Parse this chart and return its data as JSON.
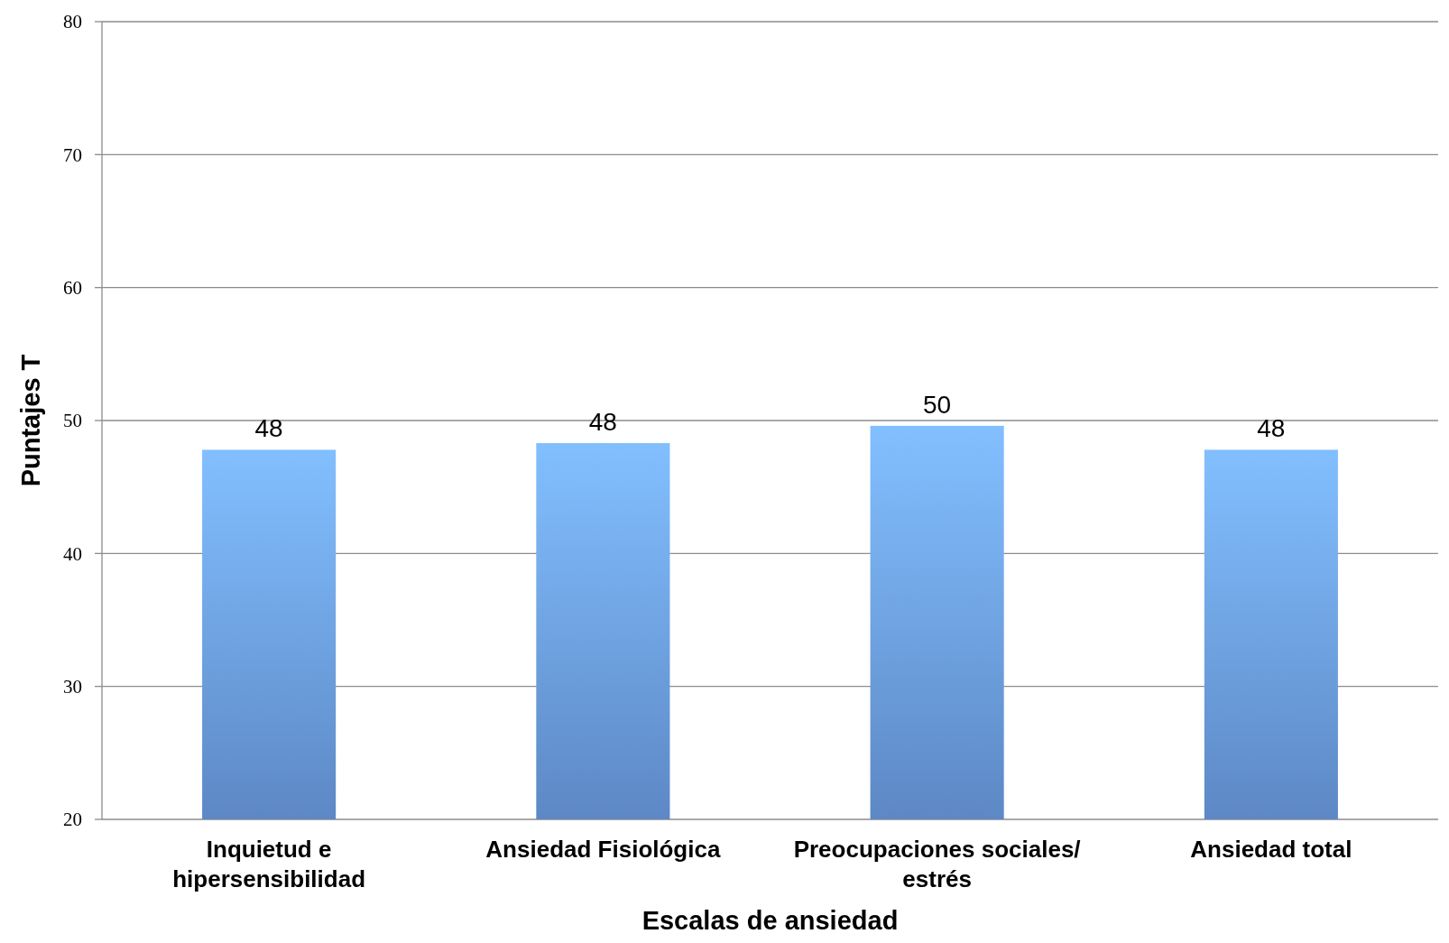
{
  "chart_data": {
    "type": "bar",
    "xlabel": "Escalas de ansiedad",
    "ylabel": "Puntajes T",
    "categories": [
      "Inquietud e hipersensibilidad",
      "Ansiedad Fisiológica",
      "Preocupaciones sociales/ estrés",
      "Ansiedad total"
    ],
    "values": [
      47.8,
      48.3,
      49.6,
      47.8
    ],
    "value_labels": [
      "48",
      "48",
      "50",
      "48"
    ],
    "color": "#6fa3ec",
    "ylim": [
      20,
      80
    ],
    "yticks": [
      20,
      30,
      40,
      50,
      60,
      70,
      80
    ],
    "grid": "y"
  }
}
